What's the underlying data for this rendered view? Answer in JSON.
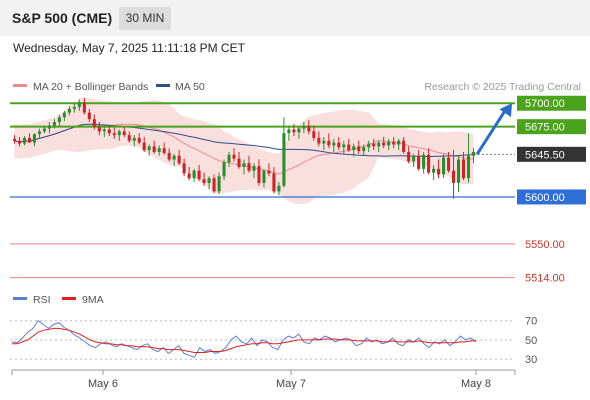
{
  "header": {
    "title": "S&P 500 (CME)",
    "timeframe": "30 MIN"
  },
  "datetime": "Wednesday, May 7, 2025 11:11:18 PM CET",
  "legend": {
    "bollinger": "MA 20 + Bollinger Bands",
    "ma50": "MA 50",
    "credit": "Research © 2025 Trading Central",
    "rsi": "RSI",
    "rsi_ma": "9MA"
  },
  "colors": {
    "up": "#2e8b2e",
    "down": "#c62828",
    "resistance": "#4aa31a",
    "support": "#2f6fd6",
    "bands": "#f7caca",
    "ma20": "#ef8a8a",
    "ma50": "#2c4f8a",
    "arrow": "#2d6bc4",
    "target": "#f08080",
    "current": "#333333",
    "rsi": "#5b7fd6",
    "rsi_ma": "#e02020"
  },
  "chart_data": [
    {
      "type": "candlestick",
      "title": "S&P 500 (CME)",
      "ylim": [
        5505,
        5712
      ],
      "x_ticks": [
        "May 6",
        "May 7",
        "May 8"
      ],
      "levels": [
        {
          "label": "5700.00",
          "value": 5700,
          "kind": "resistance"
        },
        {
          "label": "5675.00",
          "value": 5675,
          "kind": "resistance"
        },
        {
          "label": "5645.50",
          "value": 5645.5,
          "kind": "current"
        },
        {
          "label": "5600.00",
          "value": 5600,
          "kind": "support"
        },
        {
          "label": "5550.00",
          "value": 5550,
          "kind": "target"
        },
        {
          "label": "5514.00",
          "value": 5514,
          "kind": "target"
        }
      ],
      "projection": {
        "from": 5645.5,
        "to": 5700
      },
      "candles": [
        [
          5662,
          5666,
          5657,
          5660
        ],
        [
          5660,
          5664,
          5654,
          5657
        ],
        [
          5657,
          5665,
          5655,
          5663
        ],
        [
          5663,
          5668,
          5660,
          5658
        ],
        [
          5658,
          5668,
          5654,
          5667
        ],
        [
          5667,
          5673,
          5662,
          5670
        ],
        [
          5670,
          5676,
          5668,
          5673
        ],
        [
          5673,
          5680,
          5668,
          5676
        ],
        [
          5676,
          5683,
          5673,
          5680
        ],
        [
          5680,
          5688,
          5676,
          5685
        ],
        [
          5685,
          5692,
          5681,
          5690
        ],
        [
          5690,
          5697,
          5687,
          5694
        ],
        [
          5694,
          5700,
          5690,
          5696
        ],
        [
          5696,
          5704,
          5692,
          5701
        ],
        [
          5701,
          5706,
          5688,
          5690
        ],
        [
          5690,
          5694,
          5680,
          5683
        ],
        [
          5683,
          5688,
          5672,
          5675
        ],
        [
          5675,
          5680,
          5666,
          5670
        ],
        [
          5670,
          5675,
          5664,
          5672
        ],
        [
          5672,
          5676,
          5665,
          5668
        ],
        [
          5668,
          5674,
          5662,
          5666
        ],
        [
          5666,
          5672,
          5660,
          5670
        ],
        [
          5670,
          5675,
          5664,
          5666
        ],
        [
          5666,
          5670,
          5658,
          5660
        ],
        [
          5660,
          5666,
          5654,
          5663
        ],
        [
          5663,
          5668,
          5656,
          5658
        ],
        [
          5658,
          5664,
          5648,
          5650
        ],
        [
          5650,
          5656,
          5644,
          5654
        ],
        [
          5654,
          5660,
          5646,
          5648
        ],
        [
          5648,
          5655,
          5644,
          5652
        ],
        [
          5652,
          5658,
          5645,
          5647
        ],
        [
          5647,
          5652,
          5638,
          5640
        ],
        [
          5640,
          5646,
          5633,
          5644
        ],
        [
          5644,
          5650,
          5634,
          5636
        ],
        [
          5636,
          5641,
          5622,
          5625
        ],
        [
          5625,
          5632,
          5618,
          5620
        ],
        [
          5620,
          5630,
          5616,
          5628
        ],
        [
          5628,
          5634,
          5617,
          5619
        ],
        [
          5619,
          5626,
          5612,
          5615
        ],
        [
          5615,
          5622,
          5608,
          5620
        ],
        [
          5620,
          5624,
          5604,
          5606
        ],
        [
          5606,
          5626,
          5603,
          5622
        ],
        [
          5622,
          5640,
          5618,
          5637
        ],
        [
          5637,
          5648,
          5632,
          5645
        ],
        [
          5645,
          5652,
          5638,
          5641
        ],
        [
          5641,
          5648,
          5630,
          5632
        ],
        [
          5632,
          5640,
          5624,
          5636
        ],
        [
          5636,
          5644,
          5626,
          5628
        ],
        [
          5628,
          5636,
          5620,
          5633
        ],
        [
          5633,
          5640,
          5612,
          5615
        ],
        [
          5615,
          5630,
          5610,
          5628
        ],
        [
          5628,
          5636,
          5622,
          5625
        ],
        [
          5625,
          5632,
          5604,
          5606
        ],
        [
          5606,
          5616,
          5602,
          5612
        ],
        [
          5612,
          5685,
          5610,
          5668
        ],
        [
          5668,
          5676,
          5660,
          5672
        ],
        [
          5672,
          5678,
          5665,
          5669
        ],
        [
          5669,
          5675,
          5662,
          5673
        ],
        [
          5673,
          5680,
          5668,
          5676
        ],
        [
          5676,
          5682,
          5667,
          5670
        ],
        [
          5670,
          5676,
          5660,
          5663
        ],
        [
          5663,
          5670,
          5654,
          5657
        ],
        [
          5657,
          5664,
          5650,
          5660
        ],
        [
          5660,
          5668,
          5652,
          5655
        ],
        [
          5655,
          5662,
          5648,
          5658
        ],
        [
          5658,
          5664,
          5650,
          5653
        ],
        [
          5653,
          5660,
          5646,
          5656
        ],
        [
          5656,
          5662,
          5648,
          5650
        ],
        [
          5650,
          5657,
          5643,
          5654
        ],
        [
          5654,
          5660,
          5646,
          5649
        ],
        [
          5649,
          5656,
          5644,
          5653
        ],
        [
          5653,
          5660,
          5648,
          5657
        ],
        [
          5657,
          5662,
          5650,
          5654
        ],
        [
          5654,
          5660,
          5648,
          5658
        ],
        [
          5658,
          5664,
          5652,
          5655
        ],
        [
          5655,
          5662,
          5650,
          5659
        ],
        [
          5659,
          5664,
          5652,
          5656
        ],
        [
          5656,
          5662,
          5650,
          5660
        ],
        [
          5660,
          5664,
          5646,
          5648
        ],
        [
          5648,
          5654,
          5636,
          5638
        ],
        [
          5638,
          5646,
          5632,
          5644
        ],
        [
          5644,
          5650,
          5628,
          5630
        ],
        [
          5630,
          5648,
          5625,
          5645
        ],
        [
          5645,
          5652,
          5624,
          5626
        ],
        [
          5626,
          5634,
          5618,
          5630
        ],
        [
          5630,
          5640,
          5620,
          5624
        ],
        [
          5624,
          5646,
          5620,
          5642
        ],
        [
          5642,
          5648,
          5626,
          5628
        ],
        [
          5628,
          5650,
          5598,
          5615
        ],
        [
          5615,
          5645,
          5605,
          5640
        ],
        [
          5640,
          5648,
          5618,
          5620
        ],
        [
          5620,
          5668,
          5615,
          5644
        ],
        [
          5644,
          5652,
          5636,
          5648
        ]
      ]
    },
    {
      "type": "line",
      "title": "RSI",
      "ylim": [
        25,
        78
      ],
      "y_ticks": [
        30,
        50,
        70
      ],
      "series": [
        {
          "name": "RSI",
          "values": [
            48,
            47,
            52,
            58,
            62,
            70,
            66,
            62,
            66,
            68,
            63,
            60,
            55,
            52,
            48,
            44,
            42,
            46,
            48,
            45,
            43,
            46,
            44,
            42,
            40,
            44,
            46,
            40,
            38,
            42,
            36,
            40,
            44,
            36,
            34,
            32,
            42,
            38,
            40,
            36,
            38,
            42,
            50,
            54,
            48,
            46,
            52,
            44,
            50,
            48,
            42,
            40,
            50,
            54,
            52,
            56,
            48,
            46,
            52,
            50,
            54,
            52,
            48,
            50,
            52,
            50,
            44,
            46,
            52,
            48,
            50,
            46,
            48,
            52,
            46,
            44,
            50,
            48,
            52,
            46,
            42,
            48,
            46,
            50,
            44,
            48,
            54,
            50,
            52,
            48
          ]
        },
        {
          "name": "9MA",
          "values": [
            46,
            46,
            48,
            50,
            54,
            58,
            60,
            61,
            62,
            62,
            61,
            60,
            58,
            56,
            53,
            50,
            48,
            47,
            46,
            46,
            45,
            45,
            44,
            44,
            43,
            43,
            43,
            42,
            41,
            41,
            40,
            40,
            40,
            39,
            38,
            37,
            37,
            37,
            38,
            38,
            38,
            39,
            41,
            43,
            44,
            45,
            46,
            46,
            47,
            47,
            46,
            46,
            47,
            48,
            49,
            50,
            50,
            50,
            50,
            50,
            51,
            51,
            51,
            50,
            50,
            50,
            49,
            49,
            49,
            49,
            49,
            48,
            48,
            49,
            48,
            48,
            48,
            48,
            49,
            48,
            47,
            47,
            47,
            47,
            47,
            47,
            48,
            48,
            49,
            49
          ]
        }
      ]
    }
  ]
}
